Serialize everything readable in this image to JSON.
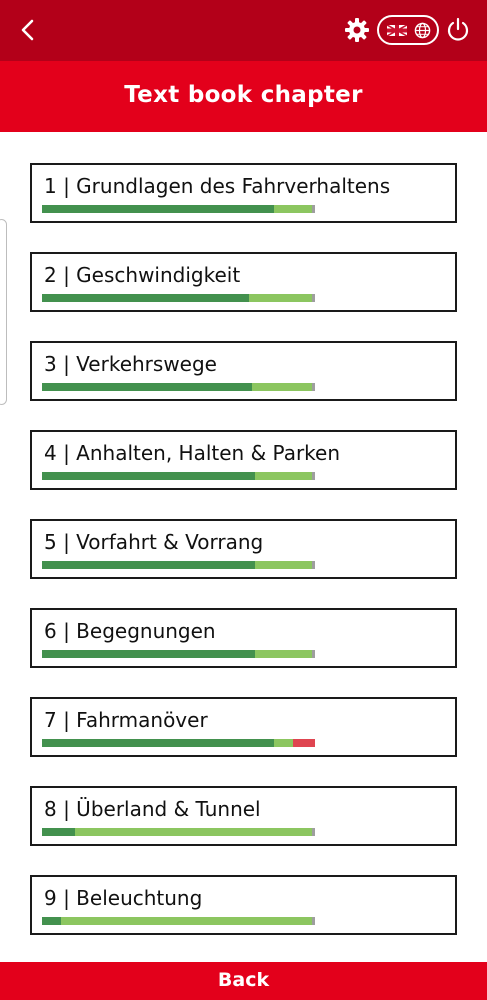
{
  "topbar": {
    "back_icon": "chevron-left-icon",
    "settings_icon": "gear-icon",
    "language_icons": [
      "uk-flag-icon",
      "globe-icon"
    ],
    "power_icon": "power-icon"
  },
  "header": {
    "title": "Text book chapter"
  },
  "chapters": [
    {
      "label": "1 | Grundlagen des Fahrverhaltens",
      "progress": {
        "correct": 0.85,
        "partial": 0.14,
        "wrong": 0
      }
    },
    {
      "label": "2 | Geschwindigkeit",
      "progress": {
        "correct": 0.76,
        "partial": 0.23,
        "wrong": 0
      }
    },
    {
      "label": "3 | Verkehrswege",
      "progress": {
        "correct": 0.77,
        "partial": 0.22,
        "wrong": 0
      }
    },
    {
      "label": "4 | Anhalten, Halten & Parken",
      "progress": {
        "correct": 0.78,
        "partial": 0.21,
        "wrong": 0
      }
    },
    {
      "label": "5 | Vorfahrt & Vorrang",
      "progress": {
        "correct": 0.78,
        "partial": 0.21,
        "wrong": 0
      }
    },
    {
      "label": "6 | Begegnungen",
      "progress": {
        "correct": 0.78,
        "partial": 0.21,
        "wrong": 0
      }
    },
    {
      "label": "7 | Fahrmanöver",
      "progress": {
        "correct": 0.85,
        "partial": 0.07,
        "wrong": 0.08
      }
    },
    {
      "label": "8 | Überland & Tunnel",
      "progress": {
        "correct": 0.12,
        "partial": 0.87,
        "wrong": 0
      }
    },
    {
      "label": "9 | Beleuchtung",
      "progress": {
        "correct": 0.07,
        "partial": 0.92,
        "wrong": 0
      }
    }
  ],
  "footer": {
    "back_label": "Back"
  },
  "colors": {
    "topbar": "#b30019",
    "header": "#e3001b",
    "progress_correct": "#43914e",
    "progress_partial": "#8cc660",
    "progress_wrong": "#df4550",
    "progress_remaining": "#9e9e9e"
  }
}
